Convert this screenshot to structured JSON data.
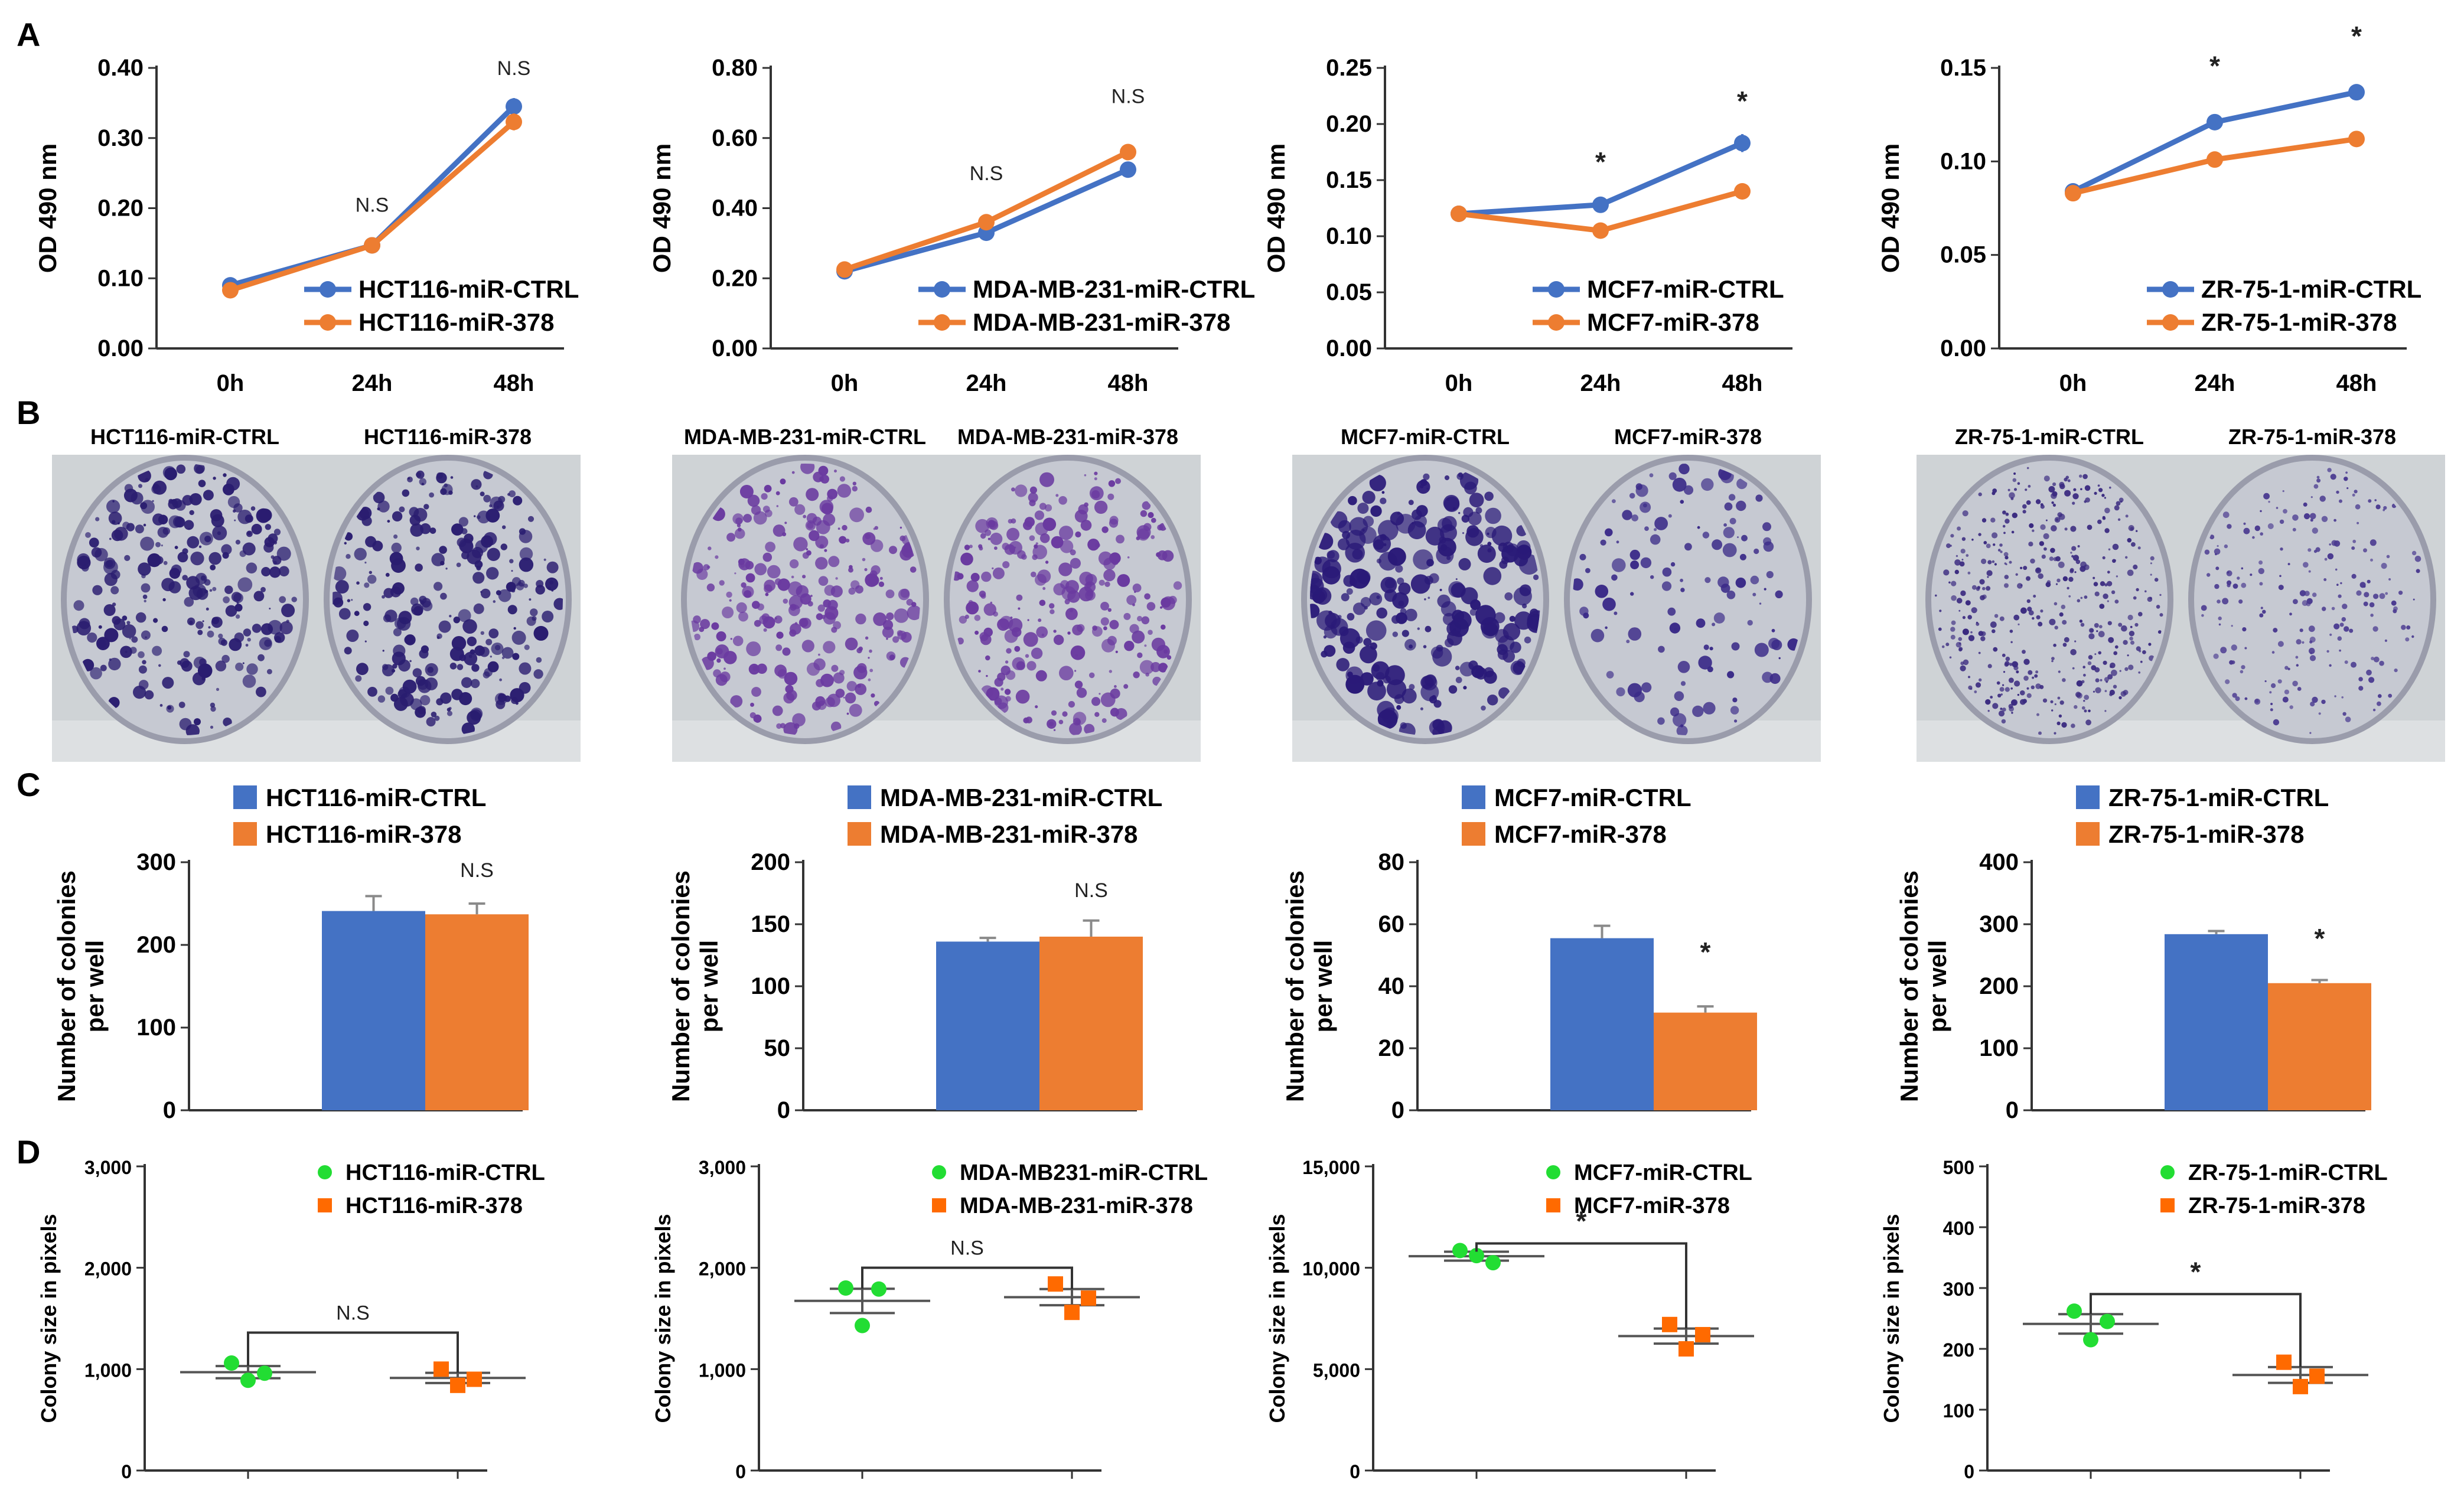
{
  "panel_letters": [
    "A",
    "B",
    "C",
    "D"
  ],
  "chart_data": [
    {
      "type": "line",
      "panel": "A",
      "title": "",
      "xlabel": "",
      "ylabel": "OD 490 nm",
      "categories": [
        "0h",
        "24h",
        "48h"
      ],
      "ylim": [
        0,
        0.4
      ],
      "yticks": [
        "0.00",
        "0.10",
        "0.20",
        "0.30",
        "0.40"
      ],
      "ytick_values": [
        0,
        0.1,
        0.2,
        0.3,
        0.4
      ],
      "series": [
        {
          "name": "HCT116-miR-CTRL",
          "color": "#4472c4",
          "values": [
            0.09,
            0.147,
            0.345
          ],
          "errors": [
            0.004,
            0.004,
            0.012
          ]
        },
        {
          "name": "HCT116-miR-378",
          "color": "#ed7d31",
          "values": [
            0.083,
            0.147,
            0.323
          ],
          "errors": [
            0.004,
            0.004,
            0.012
          ]
        }
      ],
      "annotations": [
        {
          "category": 1,
          "y": 0.195,
          "text": "N.S"
        },
        {
          "category": 2,
          "y": 0.39,
          "text": "N.S"
        }
      ],
      "legend": "bottom-right"
    },
    {
      "type": "line",
      "panel": "A",
      "title": "",
      "xlabel": "",
      "ylabel": "OD 490 nm",
      "categories": [
        "0h",
        "24h",
        "48h"
      ],
      "ylim": [
        0,
        0.8
      ],
      "yticks": [
        "0.00",
        "0.20",
        "0.40",
        "0.60",
        "0.80"
      ],
      "ytick_values": [
        0,
        0.2,
        0.4,
        0.6,
        0.8
      ],
      "series": [
        {
          "name": "MDA-MB-231-miR-CTRL",
          "color": "#4472c4",
          "values": [
            0.22,
            0.33,
            0.51
          ],
          "errors": [
            0.008,
            0.01,
            0.012
          ]
        },
        {
          "name": "MDA-MB-231-miR-378",
          "color": "#ed7d31",
          "values": [
            0.225,
            0.36,
            0.56
          ],
          "errors": [
            0.008,
            0.02,
            0.02
          ]
        }
      ],
      "annotations": [
        {
          "category": 1,
          "y": 0.48,
          "text": "N.S"
        },
        {
          "category": 2,
          "y": 0.7,
          "text": "N.S"
        }
      ],
      "legend": "bottom-right"
    },
    {
      "type": "line",
      "panel": "A",
      "title": "",
      "xlabel": "",
      "ylabel": "OD 490 nm",
      "categories": [
        "0h",
        "24h",
        "48h"
      ],
      "ylim": [
        0,
        0.25
      ],
      "yticks": [
        "0.00",
        "0.05",
        "0.10",
        "0.15",
        "0.20",
        "0.25"
      ],
      "ytick_values": [
        0,
        0.05,
        0.1,
        0.15,
        0.2,
        0.25
      ],
      "series": [
        {
          "name": "MCF7-miR-CTRL",
          "color": "#4472c4",
          "values": [
            0.12,
            0.128,
            0.183
          ],
          "errors": [
            0.004,
            0.004,
            0.008
          ]
        },
        {
          "name": "MCF7-miR-378",
          "color": "#ed7d31",
          "values": [
            0.12,
            0.105,
            0.14
          ],
          "errors": [
            0.004,
            0.004,
            0.006
          ]
        }
      ],
      "annotations": [
        {
          "category": 1,
          "y": 0.158,
          "text": "*"
        },
        {
          "category": 2,
          "y": 0.212,
          "text": "*"
        }
      ],
      "legend": "bottom-right"
    },
    {
      "type": "line",
      "panel": "A",
      "title": "",
      "xlabel": "",
      "ylabel": "OD 490 nm",
      "categories": [
        "0h",
        "24h",
        "48h"
      ],
      "ylim": [
        0,
        0.15
      ],
      "yticks": [
        "0.00",
        "0.05",
        "0.10",
        "0.15"
      ],
      "ytick_values": [
        0,
        0.05,
        0.1,
        0.15
      ],
      "series": [
        {
          "name": "ZR-75-1-miR-CTRL",
          "color": "#4472c4",
          "values": [
            0.084,
            0.121,
            0.137
          ],
          "errors": [
            0.002,
            0.002,
            0.002
          ]
        },
        {
          "name": "ZR-75-1-miR-378",
          "color": "#ed7d31",
          "values": [
            0.083,
            0.101,
            0.112
          ],
          "errors": [
            0.002,
            0.002,
            0.004
          ]
        }
      ],
      "annotations": [
        {
          "category": 1,
          "y": 0.146,
          "text": "*"
        },
        {
          "category": 2,
          "y": 0.162,
          "text": "*"
        }
      ],
      "legend": "bottom-right"
    },
    {
      "type": "bar",
      "panel": "C",
      "title": "",
      "xlabel": "",
      "ylabel": "Number of colonies per well",
      "categories": [
        ""
      ],
      "ylim": [
        0,
        300
      ],
      "yticks": [
        "0",
        "100",
        "200",
        "300"
      ],
      "ytick_values": [
        0,
        100,
        200,
        300
      ],
      "series": [
        {
          "name": "HCT116-miR-CTRL",
          "color": "#4472c4",
          "values": [
            241
          ],
          "errors": [
            18
          ]
        },
        {
          "name": "HCT116-miR-378",
          "color": "#ed7d31",
          "values": [
            237
          ],
          "errors": [
            13
          ]
        }
      ],
      "annotation": {
        "text": "N.S",
        "y": 282
      },
      "legend": "top-left"
    },
    {
      "type": "bar",
      "panel": "C",
      "title": "",
      "xlabel": "",
      "ylabel": "Number of colonies per well",
      "categories": [
        ""
      ],
      "ylim": [
        0,
        200
      ],
      "yticks": [
        "0",
        "50",
        "100",
        "150",
        "200"
      ],
      "ytick_values": [
        0,
        50,
        100,
        150,
        200
      ],
      "series": [
        {
          "name": "MDA-MB-231-miR-CTRL",
          "color": "#4472c4",
          "values": [
            136
          ],
          "errors": [
            3
          ]
        },
        {
          "name": "MDA-MB-231-miR-378",
          "color": "#ed7d31",
          "values": [
            140
          ],
          "errors": [
            13
          ]
        }
      ],
      "annotation": {
        "text": "N.S",
        "y": 172
      },
      "legend": "top-left"
    },
    {
      "type": "bar",
      "panel": "C",
      "title": "",
      "xlabel": "",
      "ylabel": "Number of colonies per well",
      "categories": [
        ""
      ],
      "ylim": [
        0,
        80
      ],
      "yticks": [
        "0",
        "20",
        "40",
        "60",
        "80"
      ],
      "ytick_values": [
        0,
        20,
        40,
        60,
        80
      ],
      "series": [
        {
          "name": "MCF7-miR-CTRL",
          "color": "#4472c4",
          "values": [
            55.5
          ],
          "errors": [
            4
          ]
        },
        {
          "name": "MCF7-miR-378",
          "color": "#ed7d31",
          "values": [
            31.5
          ],
          "errors": [
            2
          ]
        }
      ],
      "annotation": {
        "text": "*",
        "y": 48
      },
      "legend": "top-left"
    },
    {
      "type": "bar",
      "panel": "C",
      "title": "",
      "xlabel": "",
      "ylabel": "Number of colonies per well",
      "categories": [
        ""
      ],
      "ylim": [
        0,
        400
      ],
      "yticks": [
        "0",
        "100",
        "200",
        "300",
        "400"
      ],
      "ytick_values": [
        0,
        100,
        200,
        300,
        400
      ],
      "series": [
        {
          "name": "ZR-75-1-miR-CTRL",
          "color": "#4472c4",
          "values": [
            284
          ],
          "errors": [
            5
          ]
        },
        {
          "name": "ZR-75-1-miR-378",
          "color": "#ed7d31",
          "values": [
            205
          ],
          "errors": [
            5
          ]
        }
      ],
      "annotation": {
        "text": "*",
        "y": 262
      },
      "legend": "top-left"
    },
    {
      "type": "scatter",
      "panel": "D",
      "title": "",
      "xlabel": "",
      "ylabel": "Colony size in pixels",
      "ylim": [
        0,
        3000
      ],
      "yticks": [
        "0",
        "1,000",
        "2,000",
        "3,000"
      ],
      "ytick_values": [
        0,
        1000,
        2000,
        3000
      ],
      "groups": [
        {
          "name": "HCT116-miR-CTRL",
          "color": "#22dd33",
          "marker": "circle",
          "points": [
            1060,
            960,
            890
          ],
          "mean": 970,
          "sem": 60
        },
        {
          "name": "HCT116-miR-378",
          "color": "#ff6a00",
          "marker": "square",
          "points": [
            1000,
            900,
            840
          ],
          "mean": 913,
          "sem": 50
        }
      ],
      "bracket_y": 1360,
      "significance": "N.S",
      "legend": "top-right"
    },
    {
      "type": "scatter",
      "panel": "D",
      "title": "",
      "xlabel": "",
      "ylabel": "Colony size in pixels",
      "ylim": [
        0,
        3000
      ],
      "yticks": [
        "0",
        "1,000",
        "2,000",
        "3,000"
      ],
      "ytick_values": [
        0,
        1000,
        2000,
        3000
      ],
      "groups": [
        {
          "name": "MDA-MB231-miR-CTRL",
          "color": "#22dd33",
          "marker": "circle",
          "points": [
            1800,
            1790,
            1430
          ],
          "mean": 1673,
          "sem": 120
        },
        {
          "name": "MDA-MB-231-miR-378",
          "color": "#ff6a00",
          "marker": "square",
          "points": [
            1840,
            1700,
            1560
          ],
          "mean": 1710,
          "sem": 80
        }
      ],
      "bracket_y": 2000,
      "significance": "N.S",
      "legend": "top-right"
    },
    {
      "type": "scatter",
      "panel": "D",
      "title": "",
      "xlabel": "",
      "ylabel": "Colony size in pixels",
      "ylim": [
        0,
        15000
      ],
      "yticks": [
        "0",
        "5,000",
        "10,000",
        "15,000"
      ],
      "ytick_values": [
        0,
        5000,
        10000,
        15000
      ],
      "groups": [
        {
          "name": "MCF7-miR-CTRL",
          "color": "#22dd33",
          "marker": "circle",
          "points": [
            10850,
            10250,
            10600
          ],
          "mean": 10570,
          "sem": 220
        },
        {
          "name": "MCF7-miR-378",
          "color": "#ff6a00",
          "marker": "square",
          "points": [
            7200,
            6700,
            6000
          ],
          "mean": 6630,
          "sem": 370
        }
      ],
      "bracket_y": 11200,
      "significance": "*",
      "legend": "top-right"
    },
    {
      "type": "scatter",
      "panel": "D",
      "title": "",
      "xlabel": "",
      "ylabel": "Colony size in pixels",
      "ylim": [
        0,
        500
      ],
      "yticks": [
        "0",
        "100",
        "200",
        "300",
        "400",
        "500"
      ],
      "ytick_values": [
        0,
        100,
        200,
        300,
        400,
        500
      ],
      "groups": [
        {
          "name": "ZR-75-1-miR-CTRL",
          "color": "#22dd33",
          "marker": "circle",
          "points": [
            262,
            245,
            215
          ],
          "mean": 241,
          "sem": 16
        },
        {
          "name": "ZR-75-1-miR-378",
          "color": "#ff6a00",
          "marker": "square",
          "points": [
            178,
            155,
            138
          ],
          "mean": 157,
          "sem": 13
        }
      ],
      "bracket_y": 290,
      "significance": "*",
      "legend": "top-right"
    }
  ],
  "colony_photos": [
    {
      "labels": [
        "HCT116-miR-CTRL",
        "HCT116-miR-378"
      ],
      "dish_colors": [
        "#2a1d70",
        "#2a1d70"
      ],
      "density": [
        "high",
        "high"
      ]
    },
    {
      "labels": [
        "MDA-MB-231-miR-CTRL",
        "MDA-MB-231-miR-378"
      ],
      "dish_colors": [
        "#6a3aa0",
        "#6a3aa0"
      ],
      "density": [
        "high",
        "high"
      ]
    },
    {
      "labels": [
        "MCF7-miR-CTRL",
        "MCF7-miR-378"
      ],
      "dish_colors": [
        "#2a1a78",
        "#3a2a88"
      ],
      "density": [
        "high",
        "medium"
      ]
    },
    {
      "labels": [
        "ZR-75-1-miR-CTRL",
        "ZR-75-1-miR-378"
      ],
      "dish_colors": [
        "#3a2a80",
        "#4a3a90"
      ],
      "density": [
        "fine",
        "sparse"
      ]
    }
  ]
}
